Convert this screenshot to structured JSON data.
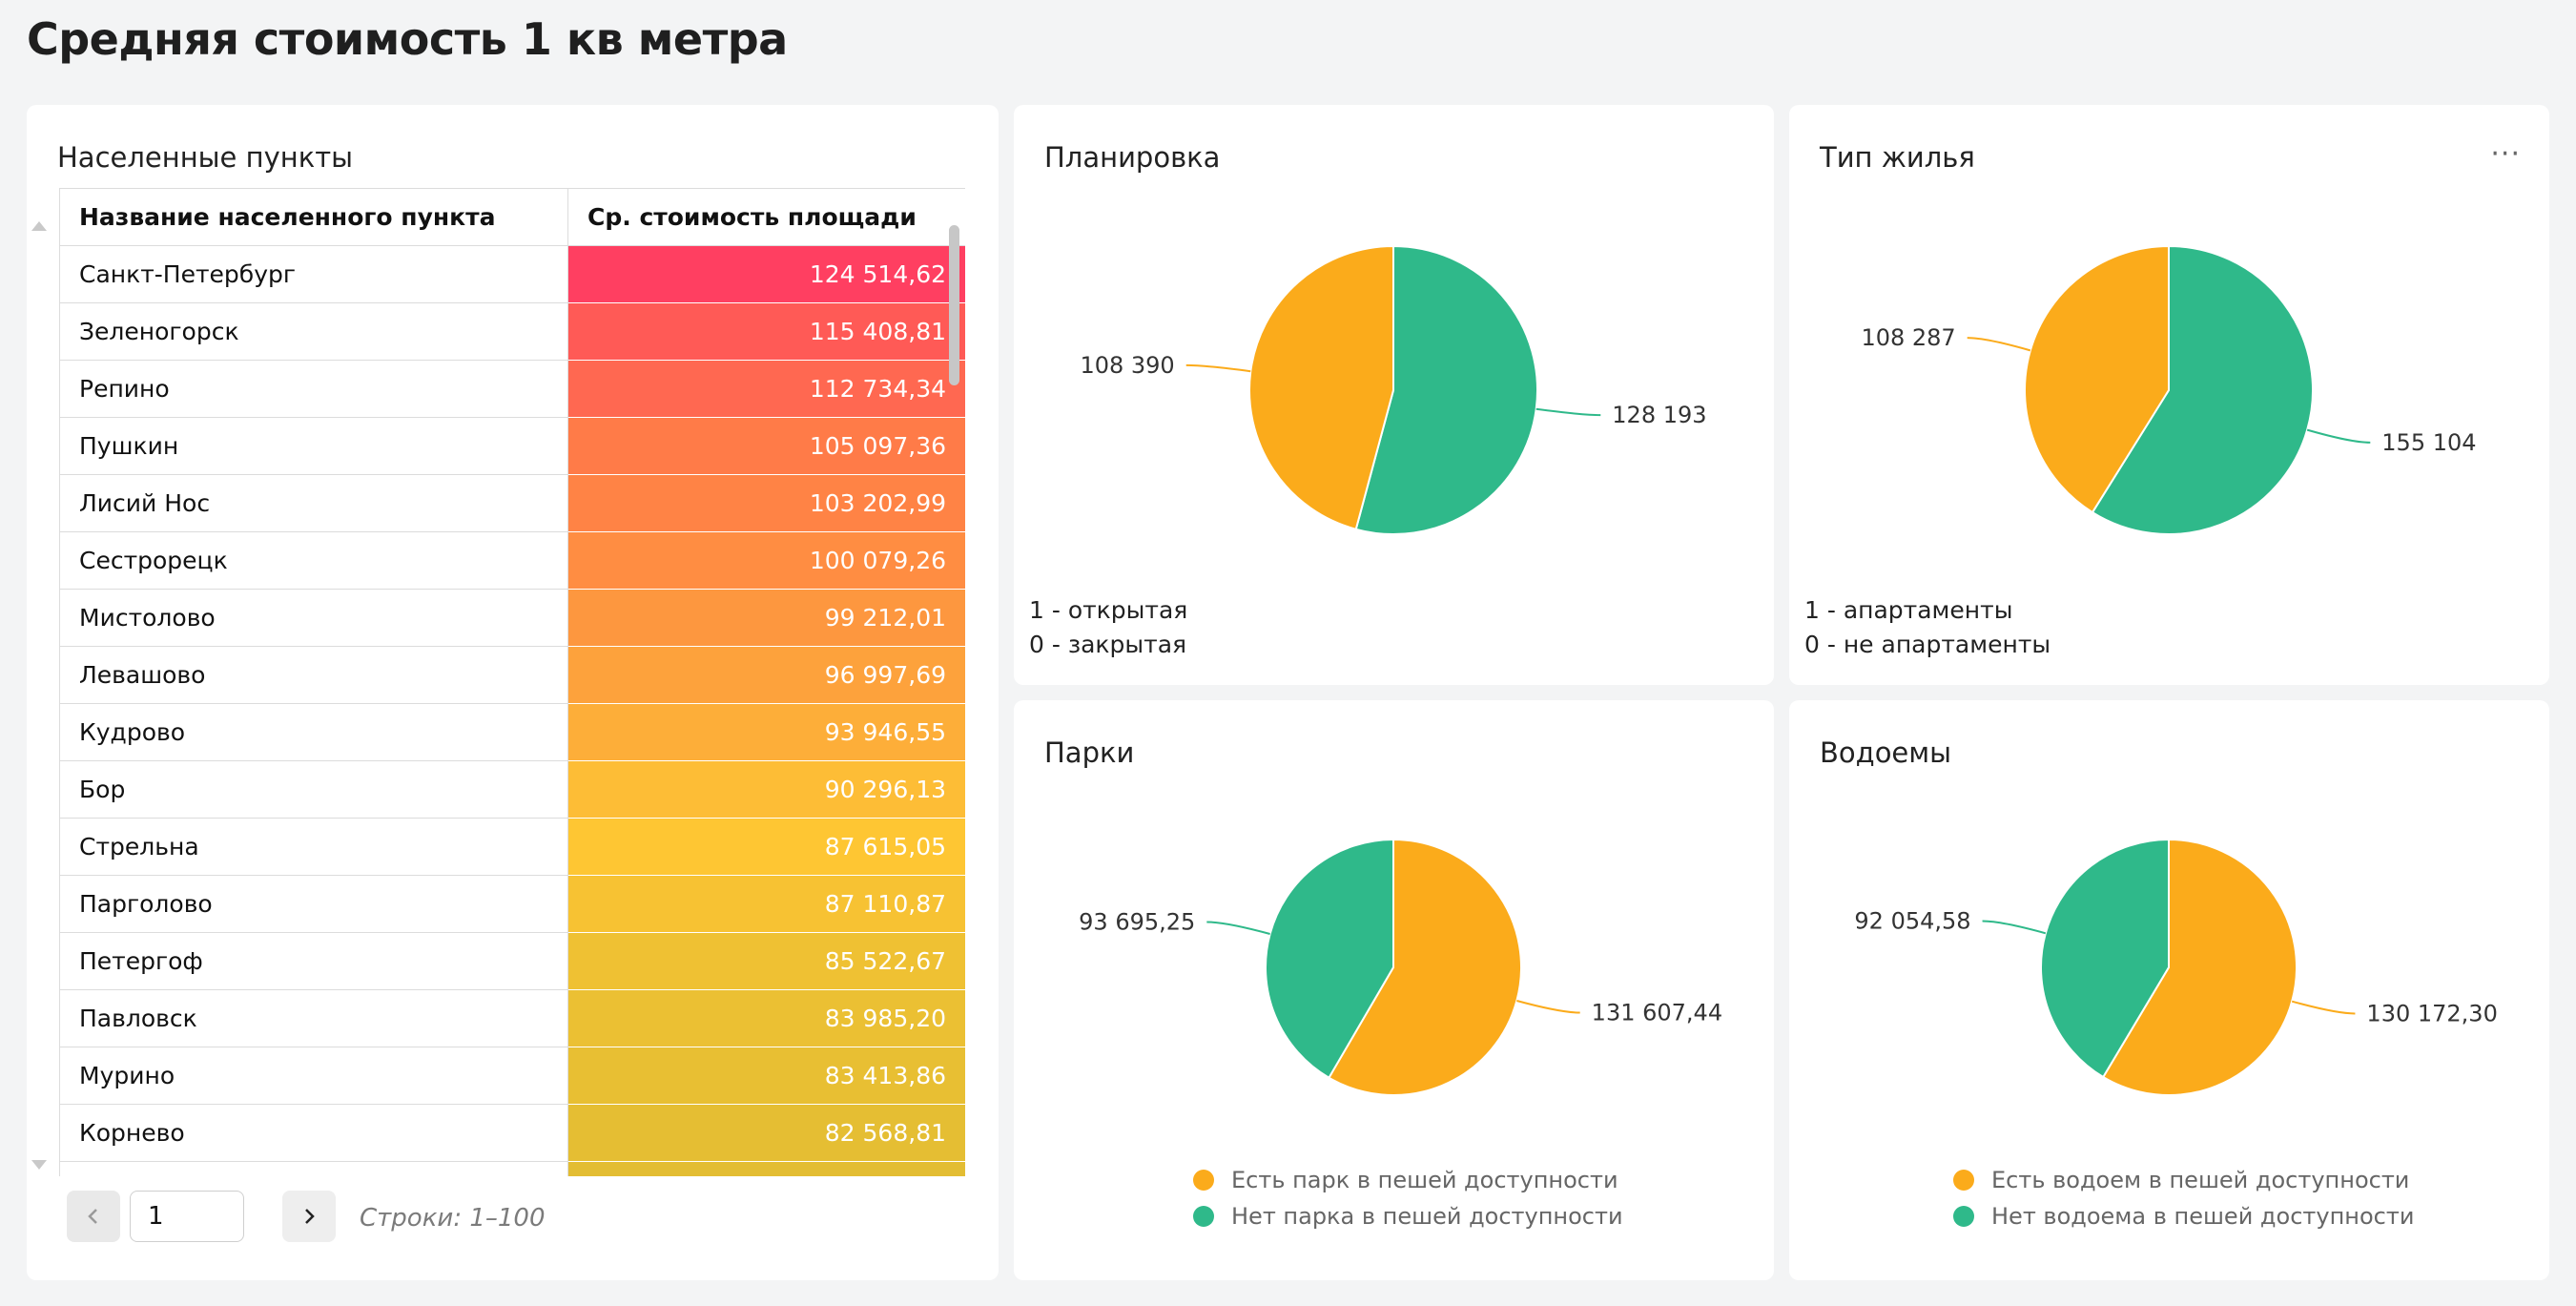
{
  "page": {
    "title": "Средняя стоимость 1 кв метра"
  },
  "colors": {
    "orange": "#fbab1b",
    "green": "#2fb98a"
  },
  "table": {
    "title": "Населенные пункты",
    "headers": [
      "Название населенного пункта",
      "Ср. стоимость площади"
    ],
    "rows": [
      {
        "name": "Санкт-Петербург",
        "value": "124 514,62",
        "color": "#ff3f61"
      },
      {
        "name": "Зеленогорск",
        "value": "115 408,81",
        "color": "#ff5a56"
      },
      {
        "name": "Репино",
        "value": "112 734,34",
        "color": "#ff6851"
      },
      {
        "name": "Пушкин",
        "value": "105 097,36",
        "color": "#ff7b48"
      },
      {
        "name": "Лисий Нос",
        "value": "103 202,99",
        "color": "#ff8345"
      },
      {
        "name": "Сестрорецк",
        "value": "100 079,26",
        "color": "#ff8d42"
      },
      {
        "name": "Мистолово",
        "value": "99 212,01",
        "color": "#fd973f"
      },
      {
        "name": "Левашово",
        "value": "96 997,69",
        "color": "#fda23c"
      },
      {
        "name": "Кудрово",
        "value": "93 946,55",
        "color": "#fdae39"
      },
      {
        "name": "Бор",
        "value": "90 296,13",
        "color": "#fdbd36"
      },
      {
        "name": "Стрельна",
        "value": "87 615,05",
        "color": "#fec633"
      },
      {
        "name": "Парголово",
        "value": "87 110,87",
        "color": "#f7c233"
      },
      {
        "name": "Петергоф",
        "value": "85 522,67",
        "color": "#efc133"
      },
      {
        "name": "Павловск",
        "value": "83 985,20",
        "color": "#ebc033"
      },
      {
        "name": "Мурино",
        "value": "83 413,86",
        "color": "#e8bf33"
      },
      {
        "name": "Корнево",
        "value": "82 568,81",
        "color": "#e5be33"
      },
      {
        "name": "",
        "value": "",
        "color": "#e3bd33"
      }
    ],
    "page_input": "1",
    "rows_info": "Строки: 1–100"
  },
  "charts": {
    "plan": {
      "title": "Планировка",
      "notes": [
        "1 - открытая",
        "0 - закрытая"
      ]
    },
    "type": {
      "title": "Тип жилья",
      "notes": [
        "1 - апартаменты",
        "0 - не апартаменты"
      ],
      "menu": "···"
    },
    "parks": {
      "title": "Парки",
      "legend": [
        "Есть парк в пешей доступности",
        "Нет парка в пешей доступности"
      ]
    },
    "water": {
      "title": "Водоемы",
      "legend": [
        "Есть водоем в пешей доступности",
        "Нет водоема в пешей доступности"
      ]
    }
  },
  "chart_data": [
    {
      "type": "pie",
      "title": "Планировка",
      "slices": [
        {
          "label": "108 390",
          "value": 108390,
          "color": "#fbab1b"
        },
        {
          "label": "128 193",
          "value": 128193,
          "color": "#2fb98a"
        }
      ]
    },
    {
      "type": "pie",
      "title": "Тип жилья",
      "slices": [
        {
          "label": "108 287",
          "value": 108287,
          "color": "#fbab1b"
        },
        {
          "label": "155 104",
          "value": 155104,
          "color": "#2fb98a"
        }
      ]
    },
    {
      "type": "pie",
      "title": "Парки",
      "slices": [
        {
          "label": "131 607,44",
          "value": 131607.44,
          "color": "#fbab1b",
          "name": "Есть парк в пешей доступности"
        },
        {
          "label": "93 695,25",
          "value": 93695.25,
          "color": "#2fb98a",
          "name": "Нет парка в пешей доступности"
        }
      ]
    },
    {
      "type": "pie",
      "title": "Водоемы",
      "slices": [
        {
          "label": "130 172,30",
          "value": 130172.3,
          "color": "#fbab1b",
          "name": "Есть водоем в пешей доступности"
        },
        {
          "label": "92 054,58",
          "value": 92054.58,
          "color": "#2fb98a",
          "name": "Нет водоема в пешей доступности"
        }
      ]
    }
  ]
}
